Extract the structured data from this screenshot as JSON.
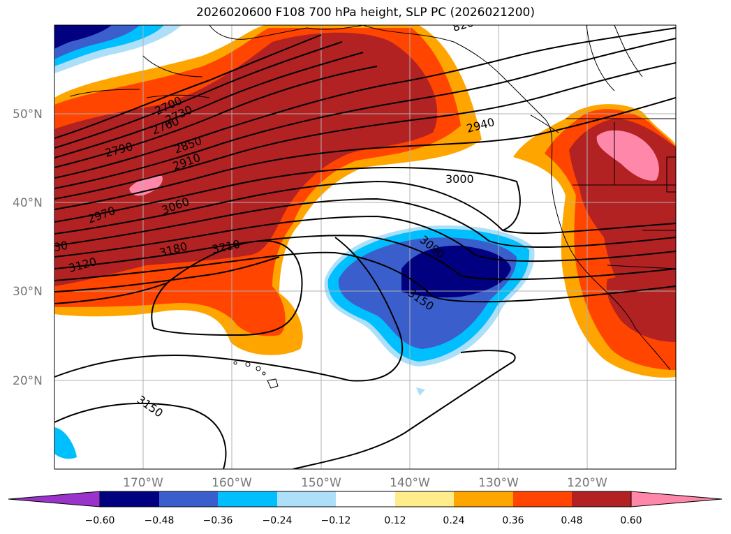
{
  "title": "2026020600 F108 700 hPa height, SLP PC (2026021200)",
  "lat_labels": [
    "50°N",
    "40°N",
    "30°N",
    "20°N"
  ],
  "lon_labels": [
    "170°W",
    "160°W",
    "150°W",
    "140°W",
    "130°W",
    "120°W"
  ],
  "colorbar": {
    "tick_labels": [
      "−0.60",
      "−0.48",
      "−0.36",
      "−0.24",
      "−0.12",
      "0.12",
      "0.24",
      "0.36",
      "0.48",
      "0.60"
    ],
    "colors": [
      "#9933cc",
      "#000080",
      "#3a5fcd",
      "#00bfff",
      "#ade0f8",
      "#ffffff",
      "#ffec8b",
      "#ffa500",
      "#ff4500",
      "#b22222",
      "#ff88aa"
    ]
  },
  "contour_labels": [
    "2700",
    "2730",
    "2760",
    "2790",
    "2850",
    "2910",
    "2970",
    "3060",
    "30",
    "3120",
    "3180",
    "3210",
    "2940",
    "3000",
    "3090",
    "3150",
    "3150",
    "820"
  ]
}
